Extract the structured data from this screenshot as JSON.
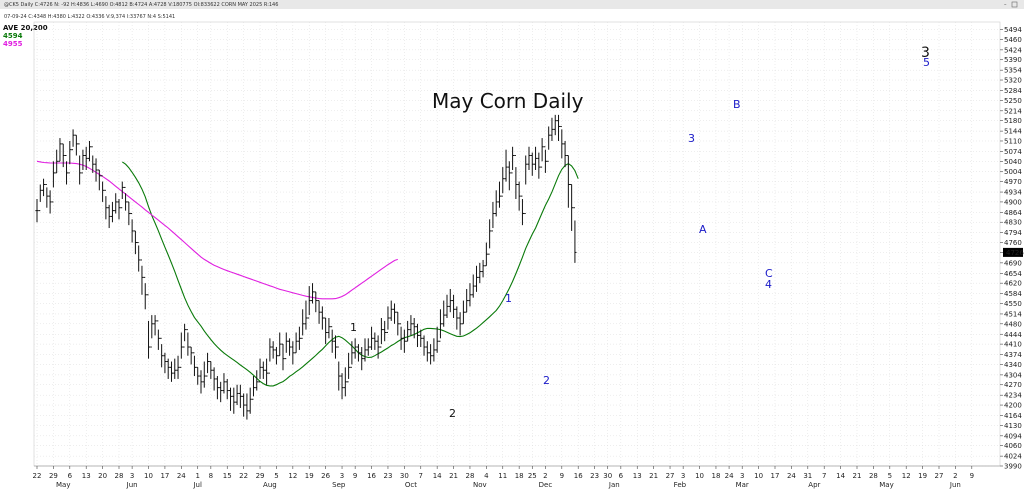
{
  "header": {
    "info_line": "@CK5 Daily C:4726 N: -92 H:4836 L:4690 O:4812 B:4724 A:4728 V:180775 OI:833622 CORN MAY 2025 R:146",
    "date_line": "07-09-24  C:4348  H:4380  L:4322  O:4336  V:9,374  I:33767  N:4  S:5141",
    "legend_label": "AVE 20,200",
    "legend_value_1": "4594",
    "legend_value_2": "4955",
    "legend_color_1": "#0a7a0a",
    "legend_color_2": "#e020e0"
  },
  "price_box": {
    "label": "4726",
    "bg": "#000000",
    "color": "#ffffff"
  },
  "chart_data": {
    "type": "ohlc",
    "title": "May Corn Daily",
    "xlabel": "",
    "ylabel": "",
    "ylim": [
      3990,
      5520
    ],
    "yticks": [
      3990,
      4024,
      4060,
      4094,
      4130,
      4164,
      4200,
      4234,
      4270,
      4304,
      4340,
      4374,
      4410,
      4444,
      4480,
      4514,
      4550,
      4584,
      4620,
      4654,
      4690,
      4726,
      4760,
      4794,
      4830,
      4864,
      4900,
      4934,
      4970,
      5004,
      5040,
      5074,
      5110,
      5144,
      5180,
      5214,
      5250,
      5284,
      5320,
      5354,
      5390,
      5424,
      5460,
      5494
    ],
    "x_ticks": [
      {
        "label": "22",
        "i": 0
      },
      {
        "label": "29",
        "i": 5
      },
      {
        "label": "6",
        "i": 10
      },
      {
        "label": "13",
        "i": 15
      },
      {
        "label": "20",
        "i": 20
      },
      {
        "label": "28",
        "i": 25
      },
      {
        "label": "3",
        "i": 29
      },
      {
        "label": "10",
        "i": 34
      },
      {
        "label": "17",
        "i": 39
      },
      {
        "label": "24",
        "i": 44
      },
      {
        "label": "1",
        "i": 49
      },
      {
        "label": "8",
        "i": 53
      },
      {
        "label": "15",
        "i": 58
      },
      {
        "label": "22",
        "i": 63
      },
      {
        "label": "29",
        "i": 68
      },
      {
        "label": "5",
        "i": 73
      },
      {
        "label": "12",
        "i": 78
      },
      {
        "label": "19",
        "i": 83
      },
      {
        "label": "26",
        "i": 88
      },
      {
        "label": "3",
        "i": 93
      },
      {
        "label": "9",
        "i": 97
      },
      {
        "label": "16",
        "i": 102
      },
      {
        "label": "23",
        "i": 107
      },
      {
        "label": "30",
        "i": 112
      },
      {
        "label": "7",
        "i": 117
      },
      {
        "label": "14",
        "i": 122
      },
      {
        "label": "21",
        "i": 127
      },
      {
        "label": "28",
        "i": 132
      },
      {
        "label": "4",
        "i": 137
      },
      {
        "label": "11",
        "i": 142
      },
      {
        "label": "18",
        "i": 147
      },
      {
        "label": "25",
        "i": 151
      },
      {
        "label": "2",
        "i": 155
      },
      {
        "label": "9",
        "i": 160
      },
      {
        "label": "16",
        "i": 165
      },
      {
        "label": "23",
        "i": 170
      },
      {
        "label": "30",
        "i": 174
      },
      {
        "label": "6",
        "i": 178
      },
      {
        "label": "13",
        "i": 183
      },
      {
        "label": "21",
        "i": 188
      },
      {
        "label": "27",
        "i": 193
      },
      {
        "label": "3",
        "i": 197
      },
      {
        "label": "10",
        "i": 202
      },
      {
        "label": "18",
        "i": 207
      },
      {
        "label": "24",
        "i": 211
      },
      {
        "label": "3",
        "i": 215
      },
      {
        "label": "10",
        "i": 220
      },
      {
        "label": "17",
        "i": 225
      },
      {
        "label": "24",
        "i": 230
      },
      {
        "label": "31",
        "i": 235
      },
      {
        "label": "7",
        "i": 240
      },
      {
        "label": "14",
        "i": 245
      },
      {
        "label": "21",
        "i": 250
      },
      {
        "label": "28",
        "i": 255
      },
      {
        "label": "5",
        "i": 260
      },
      {
        "label": "12",
        "i": 265
      },
      {
        "label": "19",
        "i": 270
      },
      {
        "label": "27",
        "i": 275
      },
      {
        "label": "2",
        "i": 280
      },
      {
        "label": "9",
        "i": 285
      }
    ],
    "months": [
      {
        "label": "May",
        "i": 8
      },
      {
        "label": "Jun",
        "i": 29
      },
      {
        "label": "Jul",
        "i": 49
      },
      {
        "label": "Aug",
        "i": 71
      },
      {
        "label": "Sep",
        "i": 92
      },
      {
        "label": "Oct",
        "i": 114
      },
      {
        "label": "Nov",
        "i": 135
      },
      {
        "label": "Dec",
        "i": 155
      },
      {
        "label": "Jan",
        "i": 176
      },
      {
        "label": "Feb",
        "i": 196
      },
      {
        "label": "Mar",
        "i": 215
      },
      {
        "label": "Apr",
        "i": 237
      },
      {
        "label": "May",
        "i": 259
      },
      {
        "label": "Jun",
        "i": 280
      }
    ],
    "closes": [
      4870,
      4940,
      4960,
      4920,
      4900,
      5000,
      5040,
      5100,
      5060,
      5000,
      5080,
      5130,
      5100,
      5000,
      5060,
      5050,
      5090,
      5030,
      5010,
      4990,
      4940,
      4880,
      4850,
      4870,
      4900,
      4880,
      4950,
      4900,
      4860,
      4800,
      4760,
      4700,
      4640,
      4580,
      4400,
      4480,
      4490,
      4430,
      4370,
      4350,
      4330,
      4310,
      4320,
      4330,
      4400,
      4460,
      4400,
      4380,
      4330,
      4300,
      4280,
      4300,
      4350,
      4320,
      4290,
      4260,
      4250,
      4280,
      4250,
      4230,
      4210,
      4240,
      4230,
      4200,
      4180,
      4220,
      4260,
      4280,
      4330,
      4320,
      4310,
      4400,
      4390,
      4370,
      4410,
      4360,
      4420,
      4400,
      4380,
      4420,
      4430,
      4480,
      4500,
      4560,
      4590,
      4560,
      4520,
      4500,
      4450,
      4470,
      4420,
      4400,
      4300,
      4260,
      4280,
      4330,
      4380,
      4400,
      4380,
      4360,
      4390,
      4400,
      4430,
      4420,
      4400,
      4460,
      4450,
      4500,
      4530,
      4520,
      4480,
      4430,
      4420,
      4460,
      4480,
      4470,
      4440,
      4430,
      4400,
      4380,
      4370,
      4390,
      4420,
      4480,
      4510,
      4540,
      4560,
      4530,
      4500,
      4480,
      4520,
      4560,
      4580,
      4610,
      4640,
      4660,
      4680,
      4720,
      4800,
      4860,
      4900,
      4920,
      4980,
      5020,
      5000,
      5060,
      4960,
      4920,
      4860,
      5030,
      5060,
      5030,
      5050,
      5020,
      5090,
      5040,
      5130,
      5150,
      5180,
      5160,
      5100,
      5060,
      4960,
      4880,
      4726
    ],
    "highs": [
      4910,
      4960,
      4980,
      4950,
      4940,
      5040,
      5080,
      5120,
      5100,
      5040,
      5110,
      5150,
      5130,
      5060,
      5080,
      5090,
      5110,
      5060,
      5050,
      5010,
      4970,
      4920,
      4890,
      4900,
      4930,
      4910,
      4970,
      4930,
      4900,
      4840,
      4800,
      4750,
      4680,
      4620,
      4490,
      4510,
      4510,
      4460,
      4410,
      4380,
      4360,
      4350,
      4360,
      4370,
      4450,
      4480,
      4450,
      4400,
      4370,
      4330,
      4320,
      4350,
      4380,
      4350,
      4330,
      4300,
      4280,
      4310,
      4290,
      4260,
      4260,
      4270,
      4270,
      4240,
      4240,
      4260,
      4300,
      4320,
      4360,
      4350,
      4360,
      4430,
      4420,
      4400,
      4450,
      4410,
      4450,
      4430,
      4420,
      4450,
      4470,
      4530,
      4560,
      4610,
      4620,
      4590,
      4560,
      4540,
      4500,
      4500,
      4460,
      4440,
      4350,
      4310,
      4330,
      4380,
      4420,
      4430,
      4410,
      4400,
      4430,
      4430,
      4470,
      4450,
      4440,
      4500,
      4490,
      4540,
      4560,
      4550,
      4520,
      4470,
      4460,
      4490,
      4510,
      4500,
      4480,
      4460,
      4440,
      4420,
      4410,
      4430,
      4470,
      4530,
      4560,
      4580,
      4600,
      4580,
      4540,
      4520,
      4560,
      4600,
      4620,
      4650,
      4680,
      4690,
      4700,
      4760,
      4840,
      4900,
      4940,
      4970,
      5020,
      5080,
      5040,
      5090,
      5020,
      4970,
      4910,
      5060,
      5090,
      5070,
      5090,
      5070,
      5120,
      5080,
      5160,
      5190,
      5200,
      5200,
      5150,
      5110,
      5060,
      4960,
      4836
    ],
    "lows": [
      4830,
      4900,
      4920,
      4880,
      4860,
      4950,
      5000,
      5040,
      5020,
      4960,
      5030,
      5090,
      5060,
      4960,
      5010,
      5010,
      5040,
      5000,
      4970,
      4940,
      4900,
      4840,
      4810,
      4830,
      4860,
      4840,
      4910,
      4870,
      4820,
      4760,
      4720,
      4660,
      4580,
      4530,
      4360,
      4430,
      4440,
      4390,
      4330,
      4310,
      4290,
      4280,
      4290,
      4290,
      4360,
      4420,
      4370,
      4340,
      4300,
      4270,
      4240,
      4260,
      4310,
      4290,
      4250,
      4220,
      4210,
      4240,
      4220,
      4180,
      4170,
      4200,
      4190,
      4160,
      4150,
      4170,
      4230,
      4250,
      4290,
      4290,
      4270,
      4350,
      4360,
      4340,
      4370,
      4320,
      4380,
      4370,
      4340,
      4380,
      4390,
      4440,
      4460,
      4510,
      4550,
      4520,
      4480,
      4460,
      4410,
      4430,
      4380,
      4360,
      4250,
      4220,
      4230,
      4290,
      4340,
      4360,
      4350,
      4320,
      4350,
      4370,
      4390,
      4390,
      4360,
      4410,
      4420,
      4460,
      4490,
      4480,
      4440,
      4390,
      4380,
      4420,
      4440,
      4430,
      4400,
      4400,
      4370,
      4350,
      4340,
      4350,
      4380,
      4430,
      4470,
      4500,
      4520,
      4500,
      4460,
      4440,
      4480,
      4520,
      4540,
      4570,
      4590,
      4620,
      4640,
      4680,
      4740,
      4810,
      4850,
      4880,
      4930,
      4970,
      4940,
      5010,
      4910,
      4870,
      4820,
      4960,
      5010,
      4990,
      5010,
      4980,
      5040,
      5000,
      5080,
      5110,
      5130,
      5110,
      5050,
      5020,
      4880,
      4800,
      4690
    ],
    "ma_lines": [
      {
        "label": "4594",
        "color": "#0a7a0a",
        "start": 26,
        "values": [
          5038,
          5030,
          5018,
          5002,
          4985,
          4966,
          4944,
          4918,
          4884,
          4853,
          4827,
          4800,
          4772,
          4744,
          4717,
          4689,
          4660,
          4630,
          4600,
          4570,
          4544,
          4522,
          4502,
          4487,
          4472,
          4455,
          4440,
          4426,
          4412,
          4400,
          4389,
          4379,
          4371,
          4363,
          4355,
          4347,
          4338,
          4330,
          4322,
          4313,
          4303,
          4292,
          4282,
          4274,
          4268,
          4266,
          4266,
          4270,
          4276,
          4281,
          4289,
          4299,
          4306,
          4315,
          4323,
          4332,
          4342,
          4351,
          4361,
          4371,
          4382,
          4392,
          4404,
          4416,
          4426,
          4434,
          4437,
          4432,
          4424,
          4414,
          4404,
          4392,
          4380,
          4372,
          4367,
          4364,
          4365,
          4370,
          4377,
          4383,
          4390,
          4397,
          4405,
          4411,
          4419,
          4426,
          4432,
          4435,
          4439,
          4443,
          4449,
          4455,
          4461,
          4464,
          4464,
          4463,
          4462,
          4460,
          4456,
          4451,
          4446,
          4441,
          4437,
          4436,
          4438,
          4443,
          4449,
          4457,
          4465,
          4474,
          4484,
          4494,
          4504,
          4515,
          4526,
          4541,
          4560,
          4580,
          4602,
          4626,
          4653,
          4681,
          4709,
          4740,
          4765,
          4789,
          4810,
          4836,
          4862,
          4888,
          4910,
          4935,
          4962,
          4990,
          5012,
          5026,
          5032,
          5024,
          5008,
          4980
        ]
      },
      {
        "label": "4955",
        "color": "#e020e0",
        "start": 0,
        "values": [
          5040,
          5038,
          5036,
          5035,
          5034,
          5034,
          5034,
          5034,
          5034,
          5034,
          5034,
          5033,
          5032,
          5030,
          5027,
          5022,
          5016,
          5009,
          5002,
          4995,
          4988,
          4980,
          4972,
          4963,
          4954,
          4945,
          4936,
          4927,
          4918,
          4909,
          4900,
          4891,
          4882,
          4873,
          4864,
          4855,
          4846,
          4837,
          4828,
          4819,
          4810,
          4800,
          4790,
          4780,
          4770,
          4760,
          4750,
          4740,
          4730,
          4720,
          4710,
          4702,
          4695,
          4688,
          4682,
          4677,
          4672,
          4667,
          4663,
          4659,
          4655,
          4651,
          4647,
          4643,
          4639,
          4635,
          4631,
          4627,
          4623,
          4619,
          4615,
          4611,
          4607,
          4603,
          4599,
          4596,
          4593,
          4590,
          4587,
          4584,
          4581,
          4578,
          4575,
          4573,
          4571,
          4569,
          4567,
          4566,
          4566,
          4566,
          4566,
          4567,
          4570,
          4574,
          4580,
          4588,
          4596,
          4604,
          4612,
          4620,
          4628,
          4636,
          4644,
          4652,
          4660,
          4668,
          4676,
          4684,
          4691,
          4698,
          4702
        ]
      }
    ]
  },
  "annotations": {
    "title": "May Corn Daily",
    "wave_1_black": "1",
    "wave_2_black": "2",
    "wave_3_black": "3",
    "wave_1_blue": "1",
    "wave_2_blue": "2",
    "wave_3_blue": "3",
    "wave_4_blue": "4",
    "wave_5_blue": "5",
    "wave_A": "A",
    "wave_B": "B",
    "wave_C": "C",
    "color_black": "#111111",
    "color_blue": "#1a1ac8"
  }
}
